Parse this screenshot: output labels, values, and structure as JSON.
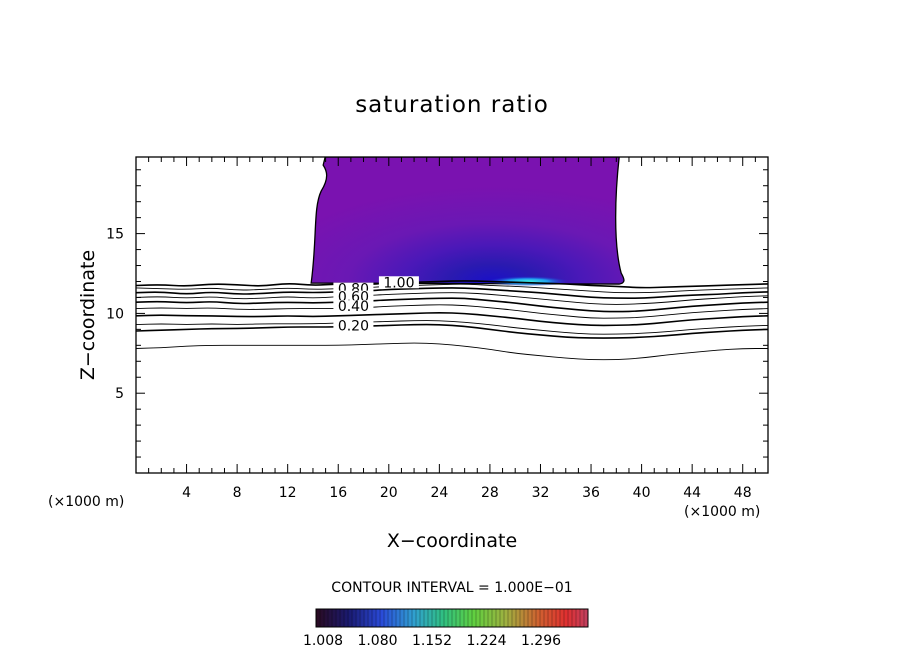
{
  "chart_data": {
    "type": "contour",
    "title": "saturation ratio",
    "xlabel": "X−coordinate",
    "ylabel": "Z−coordinate",
    "x_unit_left": "(×1000 m)",
    "x_unit_right": "(×1000 m)",
    "xlim": [
      0,
      50
    ],
    "ylim": [
      0,
      19.8
    ],
    "x_ticks": [
      4,
      8,
      12,
      16,
      20,
      24,
      28,
      32,
      36,
      40,
      44,
      48
    ],
    "y_ticks": [
      5,
      10,
      15
    ],
    "contour_labels": [
      {
        "text": "1.00",
        "x": 20.8,
        "z": 11.95
      },
      {
        "text": "0.80",
        "x": 17.2,
        "z": 11.55
      },
      {
        "text": "0.60",
        "x": 17.2,
        "z": 11.05
      },
      {
        "text": "0.40",
        "x": 17.2,
        "z": 10.45
      },
      {
        "text": "0.20",
        "x": 17.2,
        "z": 9.25
      }
    ],
    "contour_lines": [
      {
        "level": 1.0,
        "z": [
          11.75,
          11.8,
          11.7,
          11.85,
          11.8,
          11.7,
          11.9,
          11.75,
          11.85,
          11.8,
          11.9,
          11.95,
          12.0,
          12.05,
          12.0,
          11.95,
          11.9,
          11.85,
          11.75,
          11.7,
          11.6,
          11.65,
          11.7,
          11.75,
          11.8,
          11.85
        ]
      },
      {
        "level": 0.9,
        "z": [
          11.6,
          11.55,
          11.5,
          11.6,
          11.45,
          11.5,
          11.6,
          11.5,
          11.55,
          11.6,
          11.7,
          11.75,
          11.8,
          11.85,
          11.75,
          11.7,
          11.6,
          11.5,
          11.4,
          11.3,
          11.3,
          11.35,
          11.45,
          11.5,
          11.55,
          11.6
        ]
      },
      {
        "level": 0.8,
        "z": [
          11.3,
          11.35,
          11.2,
          11.35,
          11.2,
          11.25,
          11.35,
          11.3,
          11.35,
          11.4,
          11.5,
          11.55,
          11.6,
          11.6,
          11.5,
          11.4,
          11.3,
          11.15,
          11.0,
          10.95,
          10.95,
          11.05,
          11.15,
          11.2,
          11.3,
          11.35
        ]
      },
      {
        "level": 0.7,
        "z": [
          11.0,
          11.05,
          10.95,
          11.05,
          10.9,
          10.95,
          11.05,
          10.95,
          11.05,
          11.1,
          11.2,
          11.25,
          11.3,
          11.3,
          11.2,
          11.05,
          10.9,
          10.75,
          10.6,
          10.55,
          10.6,
          10.7,
          10.85,
          10.95,
          11.05,
          11.1
        ]
      },
      {
        "level": 0.6,
        "z": [
          10.7,
          10.75,
          10.65,
          10.75,
          10.6,
          10.65,
          10.7,
          10.65,
          10.7,
          10.75,
          10.85,
          10.9,
          10.95,
          10.95,
          10.8,
          10.65,
          10.45,
          10.3,
          10.15,
          10.1,
          10.15,
          10.3,
          10.45,
          10.55,
          10.65,
          10.7
        ]
      },
      {
        "level": 0.5,
        "z": [
          10.3,
          10.35,
          10.3,
          10.35,
          10.25,
          10.25,
          10.3,
          10.3,
          10.3,
          10.35,
          10.45,
          10.5,
          10.55,
          10.5,
          10.35,
          10.2,
          10.0,
          9.85,
          9.7,
          9.7,
          9.75,
          9.9,
          10.05,
          10.15,
          10.25,
          10.3
        ]
      },
      {
        "level": 0.4,
        "z": [
          9.85,
          9.9,
          9.85,
          9.85,
          9.8,
          9.8,
          9.85,
          9.8,
          9.85,
          9.9,
          9.95,
          10.0,
          10.05,
          10.0,
          9.85,
          9.7,
          9.5,
          9.35,
          9.25,
          9.25,
          9.3,
          9.45,
          9.6,
          9.7,
          9.8,
          9.85
        ]
      },
      {
        "level": 0.3,
        "z": [
          9.3,
          9.35,
          9.3,
          9.35,
          9.3,
          9.35,
          9.35,
          9.35,
          9.4,
          9.45,
          9.5,
          9.55,
          9.55,
          9.45,
          9.3,
          9.1,
          8.95,
          8.8,
          8.7,
          8.7,
          8.75,
          8.85,
          9.0,
          9.1,
          9.2,
          9.25
        ]
      },
      {
        "level": 0.2,
        "z": [
          8.9,
          8.95,
          9.0,
          9.05,
          9.05,
          9.1,
          9.15,
          9.15,
          9.15,
          9.2,
          9.25,
          9.3,
          9.3,
          9.2,
          9.0,
          8.8,
          8.65,
          8.5,
          8.45,
          8.45,
          8.5,
          8.6,
          8.75,
          8.85,
          8.95,
          9.0
        ]
      },
      {
        "level": 0.1,
        "z": [
          7.8,
          7.85,
          7.95,
          8.0,
          8.0,
          8.0,
          8.0,
          8.0,
          8.0,
          8.05,
          8.1,
          8.15,
          8.1,
          7.95,
          7.75,
          7.5,
          7.35,
          7.2,
          7.1,
          7.1,
          7.2,
          7.4,
          7.55,
          7.7,
          7.8,
          7.8
        ]
      }
    ],
    "supersaturated_region": {
      "x_range": [
        13.7,
        38.7
      ],
      "z_range": [
        11.9,
        19.8
      ],
      "peak": {
        "x": 31.0,
        "z": 11.95
      }
    },
    "colorbar": {
      "title": "CONTOUR INTERVAL = 1.000E−01",
      "tick_labels": [
        "1.008",
        "1.080",
        "1.152",
        "1.224",
        "1.296"
      ],
      "colors": [
        "#2a0a20",
        "#1a1a70",
        "#2a4ad8",
        "#30a0d0",
        "#30c080",
        "#60d040",
        "#a0b040",
        "#d06030",
        "#e03030",
        "#c04060"
      ]
    }
  }
}
